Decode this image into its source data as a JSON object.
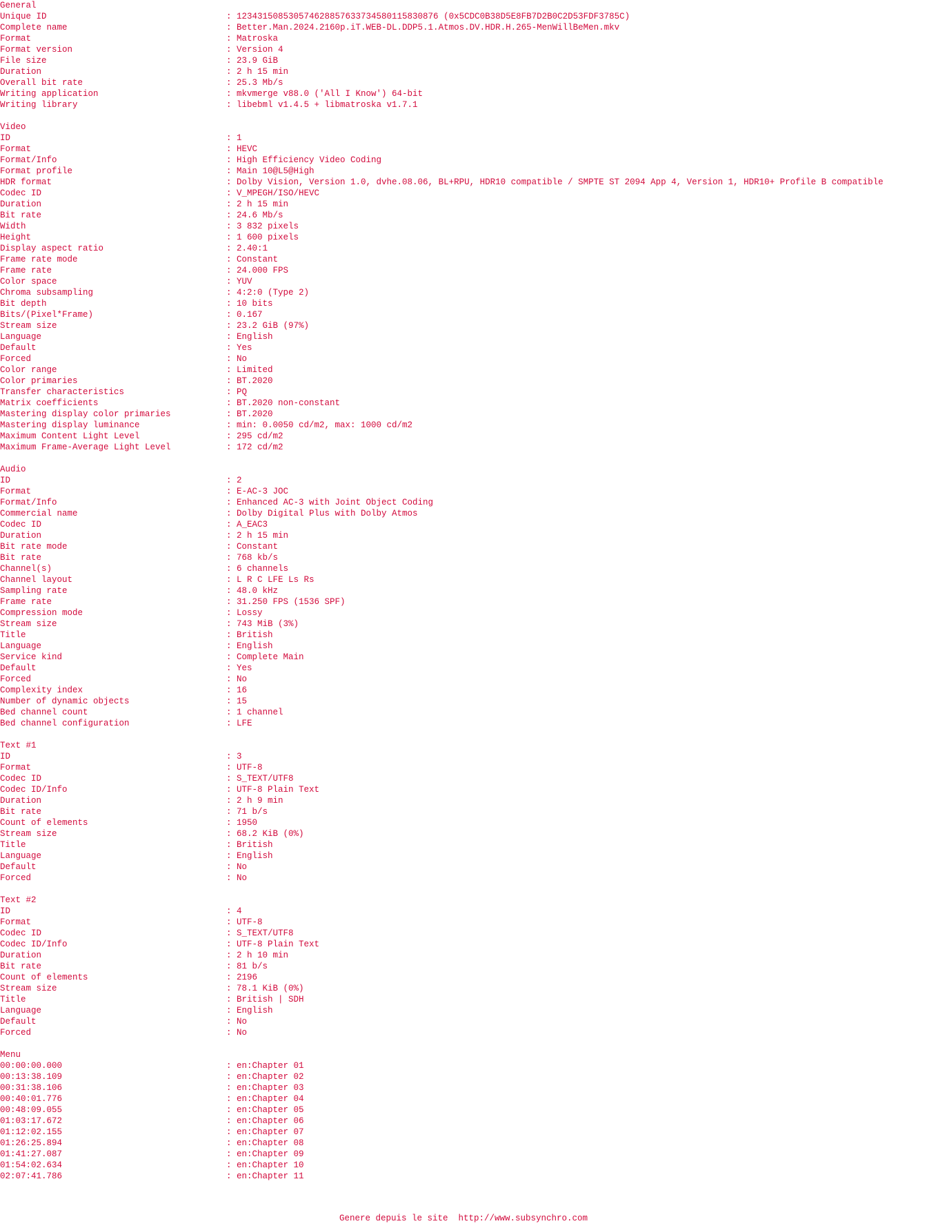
{
  "sections": [
    {
      "title": "General",
      "rows": [
        {
          "key": "Unique ID",
          "value": "123431508530574628857633734580115830876 (0x5CDC0B38D5E8FB7D2B0C2D53FDF3785C)"
        },
        {
          "key": "Complete name",
          "value": "Better.Man.2024.2160p.iT.WEB-DL.DDP5.1.Atmos.DV.HDR.H.265-MenWillBeMen.mkv"
        },
        {
          "key": "Format",
          "value": "Matroska"
        },
        {
          "key": "Format version",
          "value": "Version 4"
        },
        {
          "key": "File size",
          "value": "23.9 GiB"
        },
        {
          "key": "Duration",
          "value": "2 h 15 min"
        },
        {
          "key": "Overall bit rate",
          "value": "25.3 Mb/s"
        },
        {
          "key": "Writing application",
          "value": "mkvmerge v88.0 ('All I Know') 64-bit"
        },
        {
          "key": "Writing library",
          "value": "libebml v1.4.5 + libmatroska v1.7.1"
        }
      ]
    },
    {
      "title": "Video",
      "rows": [
        {
          "key": "ID",
          "value": "1"
        },
        {
          "key": "Format",
          "value": "HEVC"
        },
        {
          "key": "Format/Info",
          "value": "High Efficiency Video Coding"
        },
        {
          "key": "Format profile",
          "value": "Main 10@L5@High"
        },
        {
          "key": "HDR format",
          "value": "Dolby Vision, Version 1.0, dvhe.08.06, BL+RPU, HDR10 compatible / SMPTE ST 2094 App 4, Version 1, HDR10+ Profile B compatible"
        },
        {
          "key": "Codec ID",
          "value": "V_MPEGH/ISO/HEVC"
        },
        {
          "key": "Duration",
          "value": "2 h 15 min"
        },
        {
          "key": "Bit rate",
          "value": "24.6 Mb/s"
        },
        {
          "key": "Width",
          "value": "3 832 pixels"
        },
        {
          "key": "Height",
          "value": "1 600 pixels"
        },
        {
          "key": "Display aspect ratio",
          "value": "2.40:1"
        },
        {
          "key": "Frame rate mode",
          "value": "Constant"
        },
        {
          "key": "Frame rate",
          "value": "24.000 FPS"
        },
        {
          "key": "Color space",
          "value": "YUV"
        },
        {
          "key": "Chroma subsampling",
          "value": "4:2:0 (Type 2)"
        },
        {
          "key": "Bit depth",
          "value": "10 bits"
        },
        {
          "key": "Bits/(Pixel*Frame)",
          "value": "0.167"
        },
        {
          "key": "Stream size",
          "value": "23.2 GiB (97%)"
        },
        {
          "key": "Language",
          "value": "English"
        },
        {
          "key": "Default",
          "value": "Yes"
        },
        {
          "key": "Forced",
          "value": "No"
        },
        {
          "key": "Color range",
          "value": "Limited"
        },
        {
          "key": "Color primaries",
          "value": "BT.2020"
        },
        {
          "key": "Transfer characteristics",
          "value": "PQ"
        },
        {
          "key": "Matrix coefficients",
          "value": "BT.2020 non-constant"
        },
        {
          "key": "Mastering display color primaries",
          "value": "BT.2020"
        },
        {
          "key": "Mastering display luminance",
          "value": "min: 0.0050 cd/m2, max: 1000 cd/m2"
        },
        {
          "key": "Maximum Content Light Level",
          "value": "295 cd/m2"
        },
        {
          "key": "Maximum Frame-Average Light Level",
          "value": "172 cd/m2"
        }
      ]
    },
    {
      "title": "Audio",
      "rows": [
        {
          "key": "ID",
          "value": "2"
        },
        {
          "key": "Format",
          "value": "E-AC-3 JOC"
        },
        {
          "key": "Format/Info",
          "value": "Enhanced AC-3 with Joint Object Coding"
        },
        {
          "key": "Commercial name",
          "value": "Dolby Digital Plus with Dolby Atmos"
        },
        {
          "key": "Codec ID",
          "value": "A_EAC3"
        },
        {
          "key": "Duration",
          "value": "2 h 15 min"
        },
        {
          "key": "Bit rate mode",
          "value": "Constant"
        },
        {
          "key": "Bit rate",
          "value": "768 kb/s"
        },
        {
          "key": "Channel(s)",
          "value": "6 channels"
        },
        {
          "key": "Channel layout",
          "value": "L R C LFE Ls Rs"
        },
        {
          "key": "Sampling rate",
          "value": "48.0 kHz"
        },
        {
          "key": "Frame rate",
          "value": "31.250 FPS (1536 SPF)"
        },
        {
          "key": "Compression mode",
          "value": "Lossy"
        },
        {
          "key": "Stream size",
          "value": "743 MiB (3%)"
        },
        {
          "key": "Title",
          "value": "British"
        },
        {
          "key": "Language",
          "value": "English"
        },
        {
          "key": "Service kind",
          "value": "Complete Main"
        },
        {
          "key": "Default",
          "value": "Yes"
        },
        {
          "key": "Forced",
          "value": "No"
        },
        {
          "key": "Complexity index",
          "value": "16"
        },
        {
          "key": "Number of dynamic objects",
          "value": "15"
        },
        {
          "key": "Bed channel count",
          "value": "1 channel"
        },
        {
          "key": "Bed channel configuration",
          "value": "LFE"
        }
      ]
    },
    {
      "title": "Text #1",
      "rows": [
        {
          "key": "ID",
          "value": "3"
        },
        {
          "key": "Format",
          "value": "UTF-8"
        },
        {
          "key": "Codec ID",
          "value": "S_TEXT/UTF8"
        },
        {
          "key": "Codec ID/Info",
          "value": "UTF-8 Plain Text"
        },
        {
          "key": "Duration",
          "value": "2 h 9 min"
        },
        {
          "key": "Bit rate",
          "value": "71 b/s"
        },
        {
          "key": "Count of elements",
          "value": "1950"
        },
        {
          "key": "Stream size",
          "value": "68.2 KiB (0%)"
        },
        {
          "key": "Title",
          "value": "British"
        },
        {
          "key": "Language",
          "value": "English"
        },
        {
          "key": "Default",
          "value": "No"
        },
        {
          "key": "Forced",
          "value": "No"
        }
      ]
    },
    {
      "title": "Text #2",
      "rows": [
        {
          "key": "ID",
          "value": "4"
        },
        {
          "key": "Format",
          "value": "UTF-8"
        },
        {
          "key": "Codec ID",
          "value": "S_TEXT/UTF8"
        },
        {
          "key": "Codec ID/Info",
          "value": "UTF-8 Plain Text"
        },
        {
          "key": "Duration",
          "value": "2 h 10 min"
        },
        {
          "key": "Bit rate",
          "value": "81 b/s"
        },
        {
          "key": "Count of elements",
          "value": "2196"
        },
        {
          "key": "Stream size",
          "value": "78.1 KiB (0%)"
        },
        {
          "key": "Title",
          "value": "British | SDH"
        },
        {
          "key": "Language",
          "value": "English"
        },
        {
          "key": "Default",
          "value": "No"
        },
        {
          "key": "Forced",
          "value": "No"
        }
      ]
    },
    {
      "title": "Menu",
      "rows": [
        {
          "key": "00:00:00.000",
          "value": "en:Chapter 01"
        },
        {
          "key": "00:13:38.109",
          "value": "en:Chapter 02"
        },
        {
          "key": "00:31:38.106",
          "value": "en:Chapter 03"
        },
        {
          "key": "00:40:01.776",
          "value": "en:Chapter 04"
        },
        {
          "key": "00:48:09.055",
          "value": "en:Chapter 05"
        },
        {
          "key": "01:03:17.672",
          "value": "en:Chapter 06"
        },
        {
          "key": "01:12:02.155",
          "value": "en:Chapter 07"
        },
        {
          "key": "01:26:25.894",
          "value": "en:Chapter 08"
        },
        {
          "key": "01:41:27.087",
          "value": "en:Chapter 09"
        },
        {
          "key": "01:54:02.634",
          "value": "en:Chapter 10"
        },
        {
          "key": "02:07:41.786",
          "value": "en:Chapter 11"
        }
      ]
    }
  ],
  "separator": ": ",
  "footer": "Genere depuis le site  http://www.subsynchro.com",
  "colors": {
    "text": "#d20a3c",
    "background": "#ffffff"
  }
}
